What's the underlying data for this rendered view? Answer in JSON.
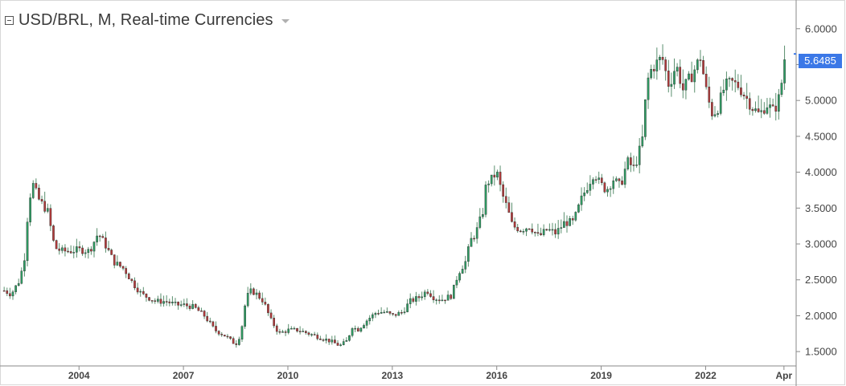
{
  "header": {
    "title": "USD/BRL, M, Real-time Currencies"
  },
  "last_price_label": "5.6485",
  "colors": {
    "up": "#2e9e64",
    "down": "#b23a3a",
    "wick": "#5a8f6e",
    "axis": "#8a8a8a",
    "badge": "#3b78e7"
  },
  "chart_data": {
    "type": "candlestick",
    "title": "USD/BRL, M, Real-time Currencies",
    "xlabel": "",
    "ylabel": "",
    "ylim": [
      1.3,
      6.4
    ],
    "x_tick_labels": [
      "2004",
      "2007",
      "2010",
      "2013",
      "2016",
      "2019",
      "2022",
      "Apr"
    ],
    "y_tick_labels": [
      "1.5000",
      "2.0000",
      "2.5000",
      "3.0000",
      "3.5000",
      "4.0000",
      "4.5000",
      "5.0000",
      "5.5000",
      "6.0000"
    ],
    "x_ticks": [
      {
        "label": "2004",
        "year": 2004
      },
      {
        "label": "2007",
        "year": 2007
      },
      {
        "label": "2010",
        "year": 2010
      },
      {
        "label": "2013",
        "year": 2013
      },
      {
        "label": "2016",
        "year": 2016
      },
      {
        "label": "2019",
        "year": 2019
      },
      {
        "label": "2022",
        "year": 2022
      },
      {
        "label": "Apr",
        "year": 2024.25
      }
    ],
    "y_ticks": [
      1.5,
      2.0,
      2.5,
      3.0,
      3.5,
      4.0,
      4.5,
      5.0,
      5.5,
      6.0
    ],
    "last_price": 5.6485,
    "close_series": [
      [
        2001.85,
        2.35
      ],
      [
        2002.05,
        2.3
      ],
      [
        2002.3,
        2.5
      ],
      [
        2002.45,
        2.85
      ],
      [
        2002.55,
        3.6
      ],
      [
        2002.7,
        3.85
      ],
      [
        2002.8,
        3.65
      ],
      [
        2002.95,
        3.55
      ],
      [
        2003.1,
        3.45
      ],
      [
        2003.3,
        2.95
      ],
      [
        2003.5,
        2.9
      ],
      [
        2003.75,
        2.9
      ],
      [
        2004.0,
        2.92
      ],
      [
        2004.3,
        2.9
      ],
      [
        2004.45,
        3.05
      ],
      [
        2004.55,
        3.15
      ],
      [
        2004.8,
        2.95
      ],
      [
        2005.0,
        2.75
      ],
      [
        2005.3,
        2.65
      ],
      [
        2005.55,
        2.45
      ],
      [
        2005.8,
        2.3
      ],
      [
        2006.2,
        2.2
      ],
      [
        2006.5,
        2.2
      ],
      [
        2006.8,
        2.15
      ],
      [
        2007.0,
        2.15
      ],
      [
        2007.3,
        2.12
      ],
      [
        2007.6,
        2.0
      ],
      [
        2007.9,
        1.8
      ],
      [
        2008.2,
        1.72
      ],
      [
        2008.5,
        1.6
      ],
      [
        2008.65,
        1.75
      ],
      [
        2008.8,
        2.25
      ],
      [
        2008.95,
        2.35
      ],
      [
        2009.1,
        2.3
      ],
      [
        2009.3,
        2.2
      ],
      [
        2009.5,
        1.95
      ],
      [
        2009.75,
        1.75
      ],
      [
        2010.0,
        1.8
      ],
      [
        2010.3,
        1.8
      ],
      [
        2010.6,
        1.75
      ],
      [
        2010.9,
        1.7
      ],
      [
        2011.2,
        1.65
      ],
      [
        2011.5,
        1.58
      ],
      [
        2011.7,
        1.65
      ],
      [
        2011.85,
        1.85
      ],
      [
        2012.0,
        1.8
      ],
      [
        2012.3,
        1.95
      ],
      [
        2012.55,
        2.05
      ],
      [
        2012.8,
        2.05
      ],
      [
        2013.0,
        2.0
      ],
      [
        2013.3,
        2.05
      ],
      [
        2013.5,
        2.2
      ],
      [
        2013.75,
        2.25
      ],
      [
        2014.0,
        2.35
      ],
      [
        2014.2,
        2.25
      ],
      [
        2014.4,
        2.22
      ],
      [
        2014.7,
        2.28
      ],
      [
        2014.9,
        2.6
      ],
      [
        2015.1,
        2.75
      ],
      [
        2015.25,
        3.05
      ],
      [
        2015.4,
        3.15
      ],
      [
        2015.6,
        3.45
      ],
      [
        2015.7,
        3.85
      ],
      [
        2015.85,
        3.9
      ],
      [
        2016.0,
        4.0
      ],
      [
        2016.15,
        3.7
      ],
      [
        2016.3,
        3.5
      ],
      [
        2016.45,
        3.25
      ],
      [
        2016.7,
        3.2
      ],
      [
        2016.95,
        3.25
      ],
      [
        2017.2,
        3.1
      ],
      [
        2017.45,
        3.2
      ],
      [
        2017.7,
        3.15
      ],
      [
        2017.95,
        3.3
      ],
      [
        2018.2,
        3.3
      ],
      [
        2018.45,
        3.65
      ],
      [
        2018.65,
        3.85
      ],
      [
        2018.8,
        4.0
      ],
      [
        2018.95,
        3.85
      ],
      [
        2019.15,
        3.75
      ],
      [
        2019.35,
        3.9
      ],
      [
        2019.55,
        3.8
      ],
      [
        2019.75,
        4.15
      ],
      [
        2019.95,
        4.05
      ],
      [
        2020.1,
        4.3
      ],
      [
        2020.2,
        4.5
      ],
      [
        2020.3,
        5.2
      ],
      [
        2020.4,
        5.4
      ],
      [
        2020.55,
        5.5
      ],
      [
        2020.75,
        5.6
      ],
      [
        2020.95,
        5.2
      ],
      [
        2021.15,
        5.5
      ],
      [
        2021.35,
        5.15
      ],
      [
        2021.6,
        5.35
      ],
      [
        2021.85,
        5.6
      ],
      [
        2022.05,
        5.05
      ],
      [
        2022.2,
        4.8
      ],
      [
        2022.35,
        4.9
      ],
      [
        2022.55,
        5.2
      ],
      [
        2022.75,
        5.25
      ],
      [
        2022.95,
        5.2
      ],
      [
        2023.15,
        5.05
      ],
      [
        2023.35,
        4.9
      ],
      [
        2023.55,
        4.8
      ],
      [
        2023.75,
        4.95
      ],
      [
        2023.95,
        4.85
      ],
      [
        2024.05,
        4.95
      ],
      [
        2024.15,
        5.1
      ],
      [
        2024.25,
        5.55
      ],
      [
        2024.3,
        5.6485
      ]
    ]
  }
}
